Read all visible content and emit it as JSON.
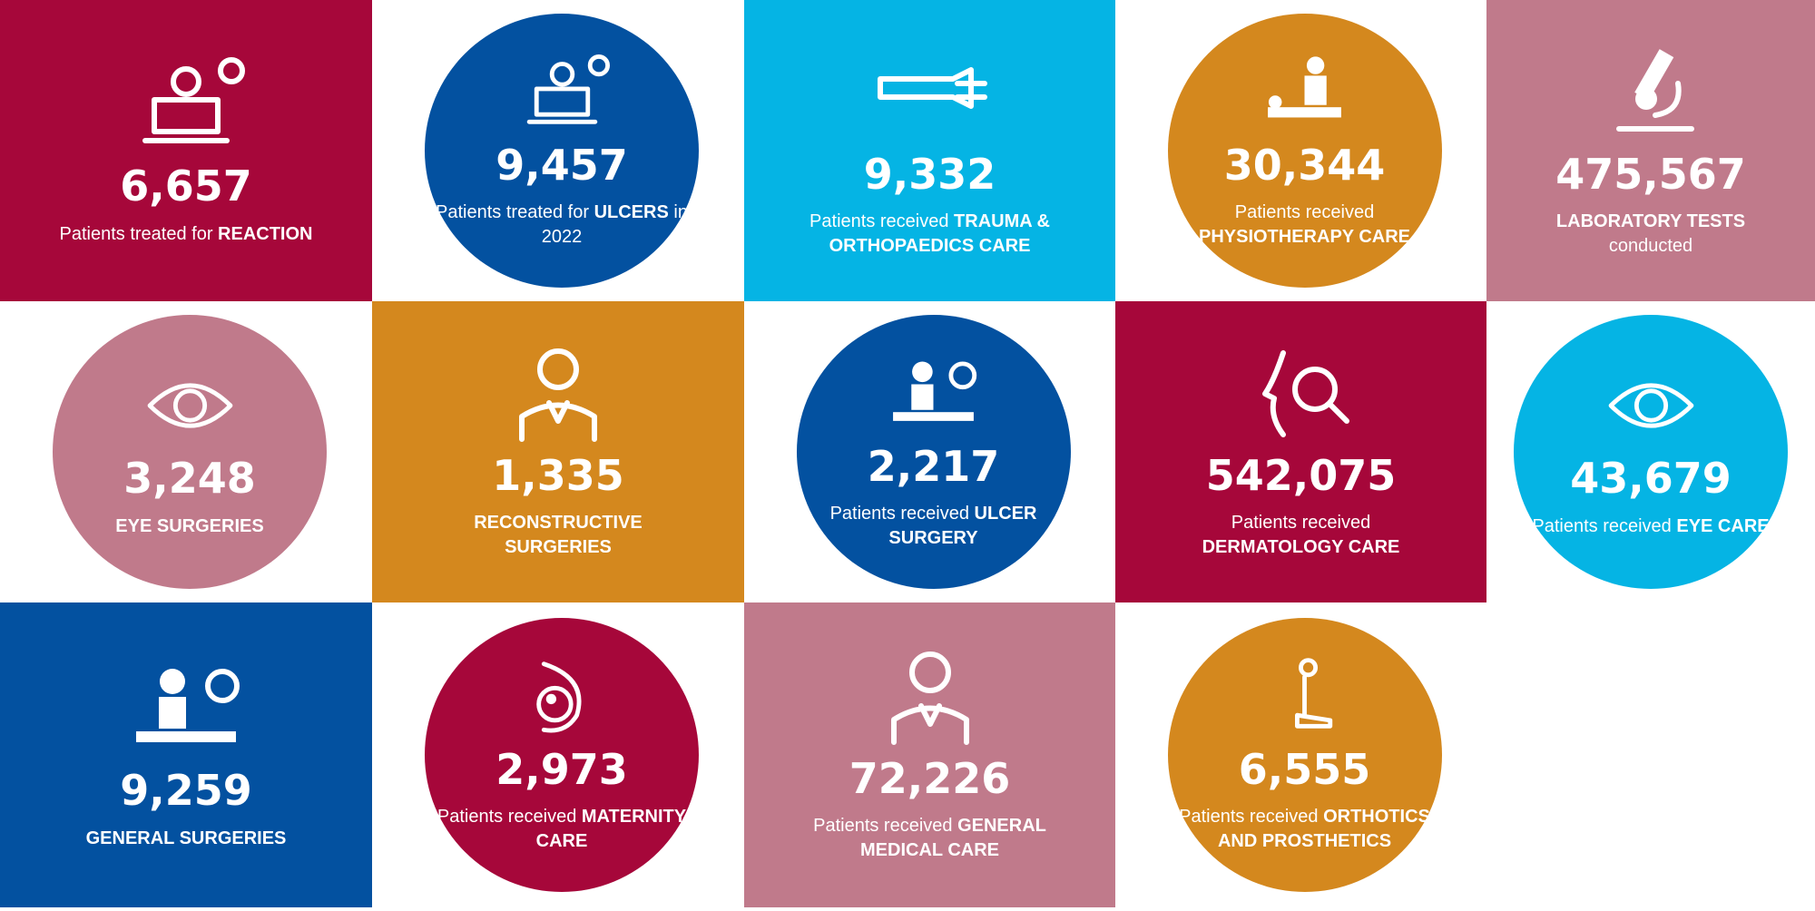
{
  "tiles": [
    {
      "number": "6,657",
      "lead": "Patients treated for",
      "emphasis": "REACTION"
    },
    {
      "number": "9,457",
      "lead": "Patients treated for",
      "emphasis": "ULCERS",
      "tail": "in 2022"
    },
    {
      "number": "9,332",
      "lead": "Patients received",
      "emphasis": "TRAUMA & ORTHOPAEDICS CARE"
    },
    {
      "number": "30,344",
      "lead": "Patients received",
      "emphasis": "PHYSIOTHERAPY CARE"
    },
    {
      "number": "475,567",
      "emphasis": "LABORATORY TESTS",
      "tail": "conducted"
    },
    {
      "number": "3,248",
      "emphasis": "EYE SURGERIES"
    },
    {
      "number": "1,335",
      "emphasis": "RECONSTRUCTIVE SURGERIES"
    },
    {
      "number": "2,217",
      "lead": "Patients received",
      "emphasis": "ULCER SURGERY"
    },
    {
      "number": "542,075",
      "lead": "Patients received",
      "emphasis": "DERMATOLOGY CARE"
    },
    {
      "number": "43,679",
      "lead": "Patients received",
      "emphasis": "EYE CARE"
    },
    {
      "number": "9,259",
      "emphasis": "GENERAL SURGERIES"
    },
    {
      "number": "2,973",
      "lead": "Patients received",
      "emphasis": "MATERNITY CARE"
    },
    {
      "number": "72,226",
      "lead": "Patients received",
      "emphasis": "GENERAL MEDICAL CARE"
    },
    {
      "number": "6,555",
      "lead": "Patients received",
      "emphasis": "ORTHOTICS AND PROSTHETICS"
    }
  ]
}
